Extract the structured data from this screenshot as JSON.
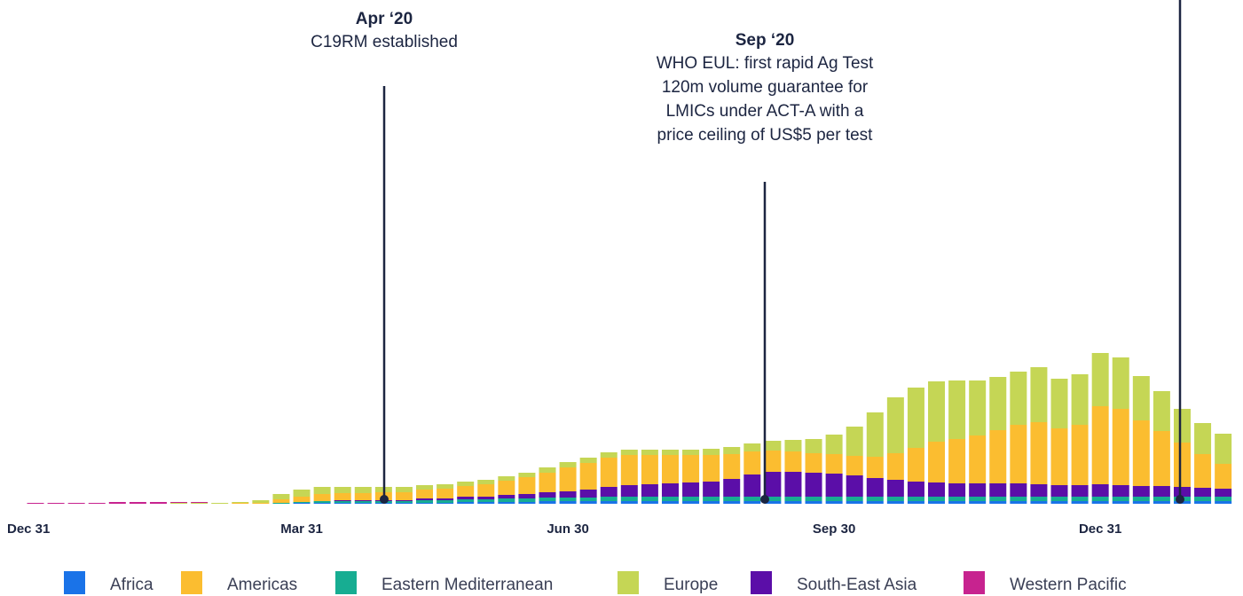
{
  "chart_data": {
    "type": "stacked_bar",
    "categories": [
      "Dec 31",
      null,
      null,
      null,
      null,
      null,
      null,
      null,
      null,
      null,
      null,
      null,
      null,
      "Mar 31",
      null,
      null,
      null,
      null,
      null,
      null,
      null,
      null,
      null,
      null,
      null,
      null,
      "Jun 30",
      null,
      null,
      null,
      null,
      null,
      null,
      null,
      null,
      null,
      null,
      null,
      null,
      "Sep 30",
      null,
      null,
      null,
      null,
      null,
      null,
      null,
      null,
      null,
      null,
      null,
      null,
      "Dec 31",
      null,
      null,
      null,
      null,
      null,
      null
    ],
    "series": [
      {
        "name": "Africa",
        "color": "#1a73e8",
        "values": [
          0,
          0,
          0,
          0,
          0,
          0,
          0,
          0,
          0,
          0,
          0,
          0,
          0,
          1,
          1,
          1,
          1,
          1,
          1,
          1,
          1,
          2,
          2,
          2,
          2,
          3,
          3,
          3,
          3,
          3,
          3,
          3,
          3,
          3,
          3,
          3,
          3,
          3,
          3,
          3,
          3,
          3,
          3,
          3,
          3,
          3,
          3,
          3,
          3,
          3,
          3,
          3,
          3,
          3,
          3,
          3,
          3,
          3,
          3
        ]
      },
      {
        "name": "Americas",
        "color": "#fbbd30",
        "values": [
          0,
          0,
          0,
          0,
          0,
          0,
          0,
          0,
          0,
          0,
          1,
          1,
          4,
          6,
          8,
          8,
          8,
          9,
          9,
          10,
          11,
          12,
          14,
          16,
          19,
          22,
          27,
          30,
          33,
          34,
          33,
          32,
          31,
          30,
          28,
          26,
          24,
          23,
          22,
          22,
          22,
          24,
          30,
          38,
          46,
          50,
          54,
          60,
          66,
          70,
          64,
          68,
          88,
          86,
          74,
          62,
          50,
          38,
          28
        ]
      },
      {
        "name": "Eastern Mediterranean",
        "color": "#17ad92",
        "values": [
          0,
          0,
          0,
          0,
          0,
          0,
          0,
          0,
          0,
          0,
          0,
          0,
          1,
          1,
          2,
          2,
          2,
          2,
          2,
          3,
          3,
          3,
          3,
          4,
          4,
          4,
          4,
          4,
          5,
          5,
          5,
          5,
          5,
          5,
          5,
          5,
          5,
          5,
          5,
          5,
          5,
          5,
          5,
          5,
          5,
          5,
          5,
          5,
          5,
          5,
          5,
          5,
          5,
          5,
          5,
          5,
          5,
          5,
          5
        ]
      },
      {
        "name": "Europe",
        "color": "#c5d655",
        "values": [
          0,
          0,
          0,
          0,
          0,
          0,
          0,
          1,
          1,
          1,
          1,
          3,
          6,
          8,
          8,
          7,
          7,
          6,
          6,
          5,
          5,
          5,
          5,
          5,
          5,
          6,
          6,
          6,
          6,
          6,
          6,
          6,
          6,
          7,
          8,
          9,
          11,
          13,
          16,
          22,
          33,
          50,
          63,
          68,
          68,
          66,
          62,
          60,
          60,
          62,
          56,
          57,
          60,
          58,
          50,
          45,
          38,
          35,
          34
        ]
      },
      {
        "name": "South-East Asia",
        "color": "#5b0ea8",
        "values": [
          0,
          0,
          0,
          0,
          0,
          0,
          0,
          0,
          0,
          0,
          0,
          0,
          0,
          0,
          0,
          1,
          1,
          1,
          1,
          2,
          2,
          3,
          3,
          4,
          5,
          6,
          7,
          9,
          11,
          13,
          14,
          15,
          16,
          17,
          20,
          25,
          28,
          28,
          27,
          26,
          24,
          21,
          19,
          17,
          16,
          15,
          15,
          15,
          15,
          14,
          13,
          13,
          14,
          13,
          12,
          12,
          11,
          10,
          9
        ]
      },
      {
        "name": "Western Pacific",
        "color": "#c7238f",
        "values": [
          1,
          1,
          1,
          1,
          2,
          2,
          2,
          1,
          1,
          0,
          0,
          0,
          0,
          0,
          0,
          0,
          0,
          0,
          0,
          0,
          0,
          0,
          0,
          0,
          0,
          0,
          0,
          0,
          0,
          0,
          0,
          0,
          0,
          0,
          0,
          0,
          0,
          0,
          0,
          0,
          0,
          0,
          0,
          0,
          0,
          0,
          0,
          0,
          0,
          0,
          0,
          0,
          0,
          0,
          0,
          0,
          0,
          0,
          0
        ]
      }
    ],
    "ylim": [
      0,
      200
    ],
    "annotations": [
      {
        "title": "Apr ‘20",
        "lines": [
          "C19RM established"
        ]
      },
      {
        "title": "Sep ‘20",
        "lines": [
          "WHO EUL: first rapid Ag Test",
          "120m volume guarantee for",
          "LMICs under ACT-A with a",
          "price ceiling of US$5 per test"
        ]
      }
    ]
  }
}
